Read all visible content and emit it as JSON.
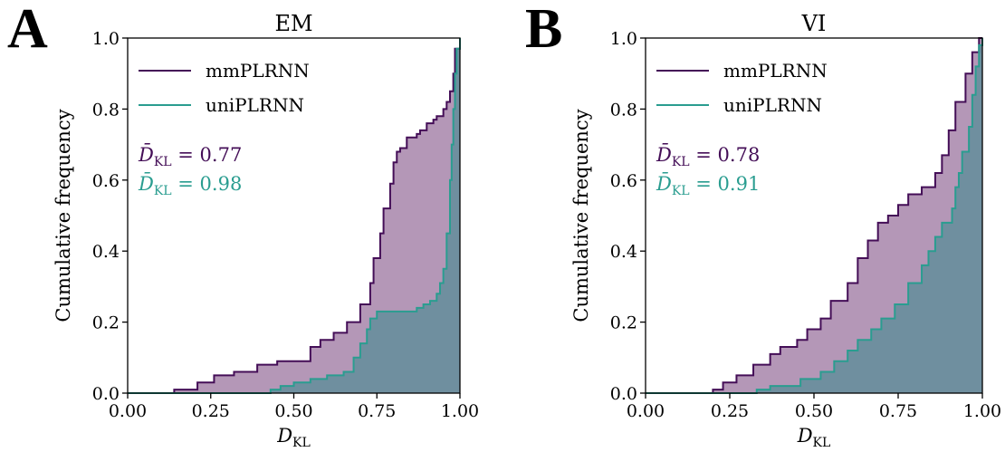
{
  "colors": {
    "mm_line": "#440e57",
    "mm_fill": "#b497b7",
    "uni_line": "#2a9d90",
    "uni_fill": "#6f8f9f"
  },
  "chart_data": [
    {
      "panel": "A",
      "type": "line",
      "title": "EM",
      "xlabel": "D",
      "xlabel_sub": "KL",
      "ylabel": "Cumulative  frequency",
      "xlim": [
        0.0,
        1.0
      ],
      "ylim": [
        0.0,
        1.0
      ],
      "xticks": [
        "0.00",
        "0.25",
        "0.50",
        "0.75",
        "1.00"
      ],
      "yticks": [
        "0.0",
        "0.2",
        "0.4",
        "0.6",
        "0.8",
        "1.0"
      ],
      "legend": "upper-left",
      "grid": false,
      "series": [
        {
          "name": "mmPLRNN",
          "x": [
            0.0,
            0.14,
            0.21,
            0.26,
            0.32,
            0.39,
            0.45,
            0.55,
            0.58,
            0.62,
            0.66,
            0.7,
            0.73,
            0.74,
            0.76,
            0.77,
            0.79,
            0.8,
            0.81,
            0.82,
            0.84,
            0.87,
            0.88,
            0.9,
            0.92,
            0.93,
            0.95,
            0.96,
            0.97,
            0.98,
            0.985,
            1.0
          ],
          "y": [
            0.0,
            0.01,
            0.03,
            0.05,
            0.06,
            0.08,
            0.09,
            0.13,
            0.15,
            0.17,
            0.2,
            0.25,
            0.31,
            0.38,
            0.45,
            0.52,
            0.59,
            0.65,
            0.68,
            0.69,
            0.72,
            0.73,
            0.74,
            0.76,
            0.77,
            0.78,
            0.8,
            0.82,
            0.85,
            0.9,
            0.97,
            1.0
          ]
        },
        {
          "name": "uniPLRNN",
          "x": [
            0.0,
            0.43,
            0.46,
            0.5,
            0.55,
            0.6,
            0.65,
            0.68,
            0.7,
            0.72,
            0.73,
            0.75,
            0.8,
            0.84,
            0.87,
            0.89,
            0.91,
            0.93,
            0.94,
            0.95,
            0.96,
            0.97,
            0.975,
            0.98,
            0.985,
            0.99,
            1.0
          ],
          "y": [
            0.0,
            0.01,
            0.02,
            0.03,
            0.04,
            0.05,
            0.06,
            0.1,
            0.14,
            0.18,
            0.21,
            0.23,
            0.23,
            0.23,
            0.24,
            0.25,
            0.26,
            0.28,
            0.31,
            0.35,
            0.45,
            0.6,
            0.7,
            0.8,
            0.9,
            0.97,
            1.0
          ]
        }
      ],
      "annotations": [
        {
          "series": "mmPLRNN",
          "symbol": "D̄",
          "sub": "KL",
          "text": " = 0.77"
        },
        {
          "series": "uniPLRNN",
          "symbol": "D̄",
          "sub": "KL",
          "text": " = 0.98"
        }
      ]
    },
    {
      "panel": "B",
      "type": "line",
      "title": "VI",
      "xlabel": "D",
      "xlabel_sub": "KL",
      "ylabel": "Cumulative  frequency",
      "xlim": [
        0.0,
        1.0
      ],
      "ylim": [
        0.0,
        1.0
      ],
      "xticks": [
        "0.00",
        "0.25",
        "0.50",
        "0.75",
        "1.00"
      ],
      "yticks": [
        "0.0",
        "0.2",
        "0.4",
        "0.6",
        "0.8",
        "1.0"
      ],
      "legend": "upper-left",
      "grid": false,
      "series": [
        {
          "name": "mmPLRNN",
          "x": [
            0.0,
            0.2,
            0.23,
            0.27,
            0.32,
            0.37,
            0.4,
            0.45,
            0.48,
            0.52,
            0.55,
            0.6,
            0.63,
            0.66,
            0.69,
            0.72,
            0.75,
            0.78,
            0.82,
            0.86,
            0.88,
            0.9,
            0.92,
            0.95,
            0.97,
            0.99,
            1.0
          ],
          "y": [
            0.0,
            0.01,
            0.03,
            0.05,
            0.08,
            0.11,
            0.13,
            0.15,
            0.18,
            0.21,
            0.26,
            0.31,
            0.38,
            0.43,
            0.48,
            0.5,
            0.53,
            0.56,
            0.58,
            0.62,
            0.67,
            0.74,
            0.82,
            0.9,
            0.96,
            1.0,
            1.0
          ]
        },
        {
          "name": "uniPLRNN",
          "x": [
            0.0,
            0.33,
            0.37,
            0.46,
            0.52,
            0.56,
            0.6,
            0.63,
            0.67,
            0.7,
            0.74,
            0.78,
            0.82,
            0.84,
            0.86,
            0.88,
            0.91,
            0.92,
            0.93,
            0.94,
            0.96,
            0.97,
            0.98,
            0.99,
            1.0
          ],
          "y": [
            0.0,
            0.01,
            0.02,
            0.04,
            0.06,
            0.09,
            0.12,
            0.15,
            0.18,
            0.21,
            0.25,
            0.31,
            0.36,
            0.4,
            0.44,
            0.48,
            0.52,
            0.58,
            0.62,
            0.68,
            0.75,
            0.84,
            0.92,
            0.98,
            1.0
          ]
        }
      ],
      "annotations": [
        {
          "series": "mmPLRNN",
          "symbol": "D̄",
          "sub": "KL",
          "text": " = 0.78"
        },
        {
          "series": "uniPLRNN",
          "symbol": "D̄",
          "sub": "KL",
          "text": " = 0.91"
        }
      ]
    }
  ]
}
